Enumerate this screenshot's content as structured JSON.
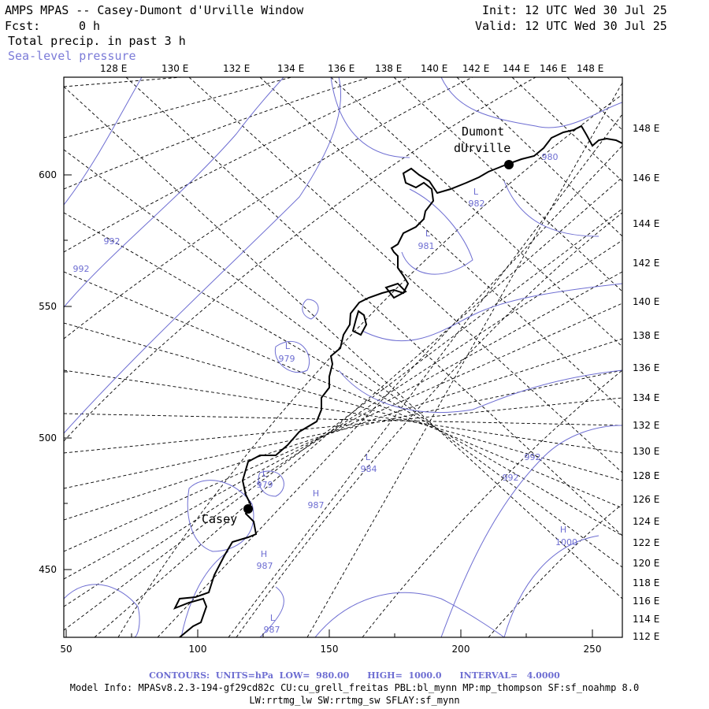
{
  "header": {
    "title": "AMPS MPAS -- Casey-Dumont d'Urville Window",
    "init": "Init: 12 UTC Wed 30 Jul 25",
    "fcst_label": "Fcst:",
    "fcst_value": "0 h",
    "valid": "Valid: 12 UTC Wed 30 Jul 25",
    "field1": "Total precip. in past 3 h",
    "field2": "Sea-level pressure"
  },
  "map": {
    "top_lon_labels": [
      "128 E",
      "130 E",
      "132 E",
      "134 E",
      "136 E",
      "138 E",
      "140 E",
      "142 E",
      "144 E",
      "146 E",
      "148 E"
    ],
    "right_lon_labels": [
      "148 E",
      "146 E",
      "144 E",
      "142 E",
      "140 E",
      "138 E",
      "136 E",
      "134 E",
      "132 E",
      "130 E",
      "128 E",
      "126 E",
      "124 E",
      "122 E",
      "120 E",
      "118 E",
      "116 E",
      "114 E",
      "112 E"
    ],
    "x_ticks": [
      "50",
      "100",
      "150",
      "200",
      "250"
    ],
    "y_ticks": [
      "600",
      "550",
      "500",
      "450"
    ],
    "stations": [
      {
        "name_line1": "Dumont",
        "name_line2": "dUrville"
      },
      {
        "name_line1": "Casey"
      }
    ],
    "contour_labels": [
      {
        "text": "992"
      },
      {
        "text": "992"
      },
      {
        "text": "980"
      },
      {
        "text": "L"
      },
      {
        "text": "982"
      },
      {
        "text": "L"
      },
      {
        "text": "981"
      },
      {
        "text": "L"
      },
      {
        "text": "979"
      },
      {
        "text": "L"
      },
      {
        "text": "984"
      },
      {
        "text": "992"
      },
      {
        "text": "992"
      },
      {
        "text": "L"
      },
      {
        "text": "979"
      },
      {
        "text": "H"
      },
      {
        "text": "987"
      },
      {
        "text": "H"
      },
      {
        "text": "987"
      },
      {
        "text": "H"
      },
      {
        "text": "1000"
      },
      {
        "text": "L"
      },
      {
        "text": "987"
      }
    ],
    "colors": {
      "contour": "#6e6ed2",
      "coast": "#000000",
      "grid": "#000000"
    }
  },
  "footer": {
    "contours": "CONTOURS:  UNITS=hPa  LOW=  980.00      HIGH=  1000.0      INTERVAL=   4.0000",
    "model_info": "Model Info: MPASv8.2.3-194-gf29cd82c CU:cu_grell_freitas PBL:bl_mynn MP:mp_thompson SF:sf_noahmp 8.0",
    "model_info2": "LW:rrtmg_lw SW:rrtmg_sw SFLAY:sf_mynn"
  }
}
